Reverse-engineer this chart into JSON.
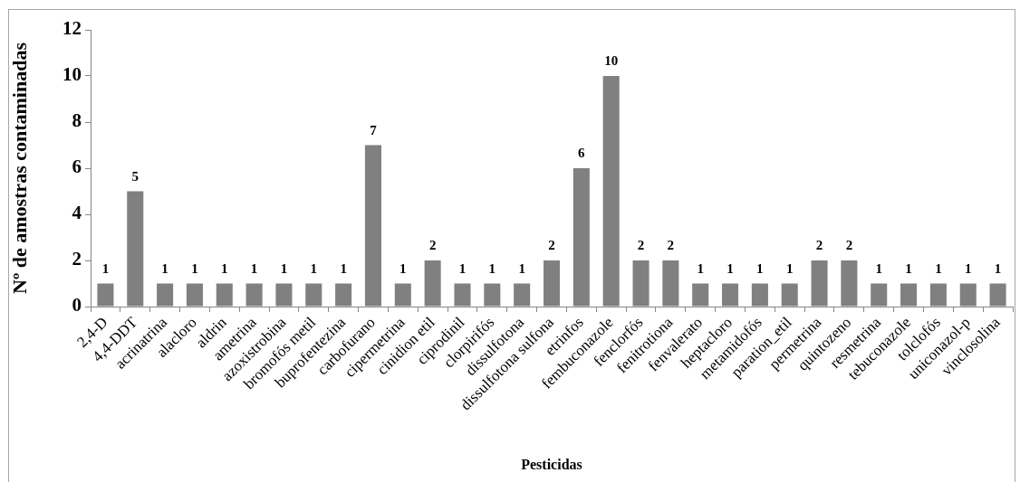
{
  "chart_data": {
    "type": "bar",
    "xlabel": "Pesticidas",
    "ylabel": "Nº de amostras contaminadas",
    "categories": [
      "2,4-D",
      "4,4-DDT",
      "acrinatrina",
      "alacloro",
      "aldrin",
      "ametrina",
      "azoxistrobina",
      "bromofós metil",
      "buprofentezina",
      "carbofurano",
      "cipermetrina",
      "cinidion etil",
      "ciprodinil",
      "clorpirifós",
      "dissulfotona",
      "dissulfotona sulfona",
      "etrinfos",
      "fembuconazole",
      "fenclorfós",
      "fenitrotiona",
      "fenvalerato",
      "heptacloro",
      "metamidofós",
      "paration_etil",
      "permetrina",
      "quintozeno",
      "resmetrina",
      "tebuconazole",
      "tolclofós",
      "uniconazol-p",
      "vinclosolina"
    ],
    "values": [
      1,
      5,
      1,
      1,
      1,
      1,
      1,
      1,
      1,
      7,
      1,
      2,
      1,
      1,
      1,
      2,
      6,
      10,
      2,
      2,
      1,
      1,
      1,
      1,
      2,
      2,
      1,
      1,
      1,
      1,
      1
    ],
    "color": "#808080",
    "ylim": [
      0,
      12
    ],
    "yticks": [
      0,
      2,
      4,
      6,
      8,
      10,
      12
    ],
    "grid": false,
    "legend": false,
    "data_labels": true
  }
}
